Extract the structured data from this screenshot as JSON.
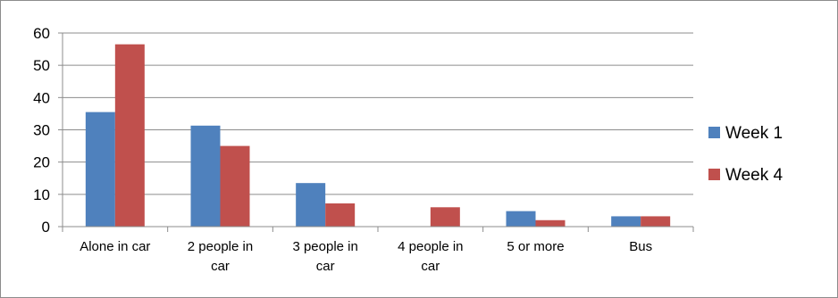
{
  "chart_data": {
    "type": "bar",
    "categories": [
      [
        "Alone in car"
      ],
      [
        "2 people in",
        "car"
      ],
      [
        "3 people in",
        "car"
      ],
      [
        "4 people in",
        "car"
      ],
      [
        "5 or more"
      ],
      [
        "Bus"
      ]
    ],
    "series": [
      {
        "name": "Week 1",
        "color": "#4f81bd",
        "values": [
          35.5,
          31.3,
          13.5,
          0,
          4.8,
          3.2
        ]
      },
      {
        "name": "Week 4",
        "color": "#c0504d",
        "values": [
          56.5,
          25.0,
          7.2,
          6.0,
          2.0,
          3.2
        ]
      }
    ],
    "ylim": [
      0,
      60
    ],
    "yticks": [
      0,
      10,
      20,
      30,
      40,
      50,
      60
    ],
    "grid": true,
    "legend": "right"
  }
}
